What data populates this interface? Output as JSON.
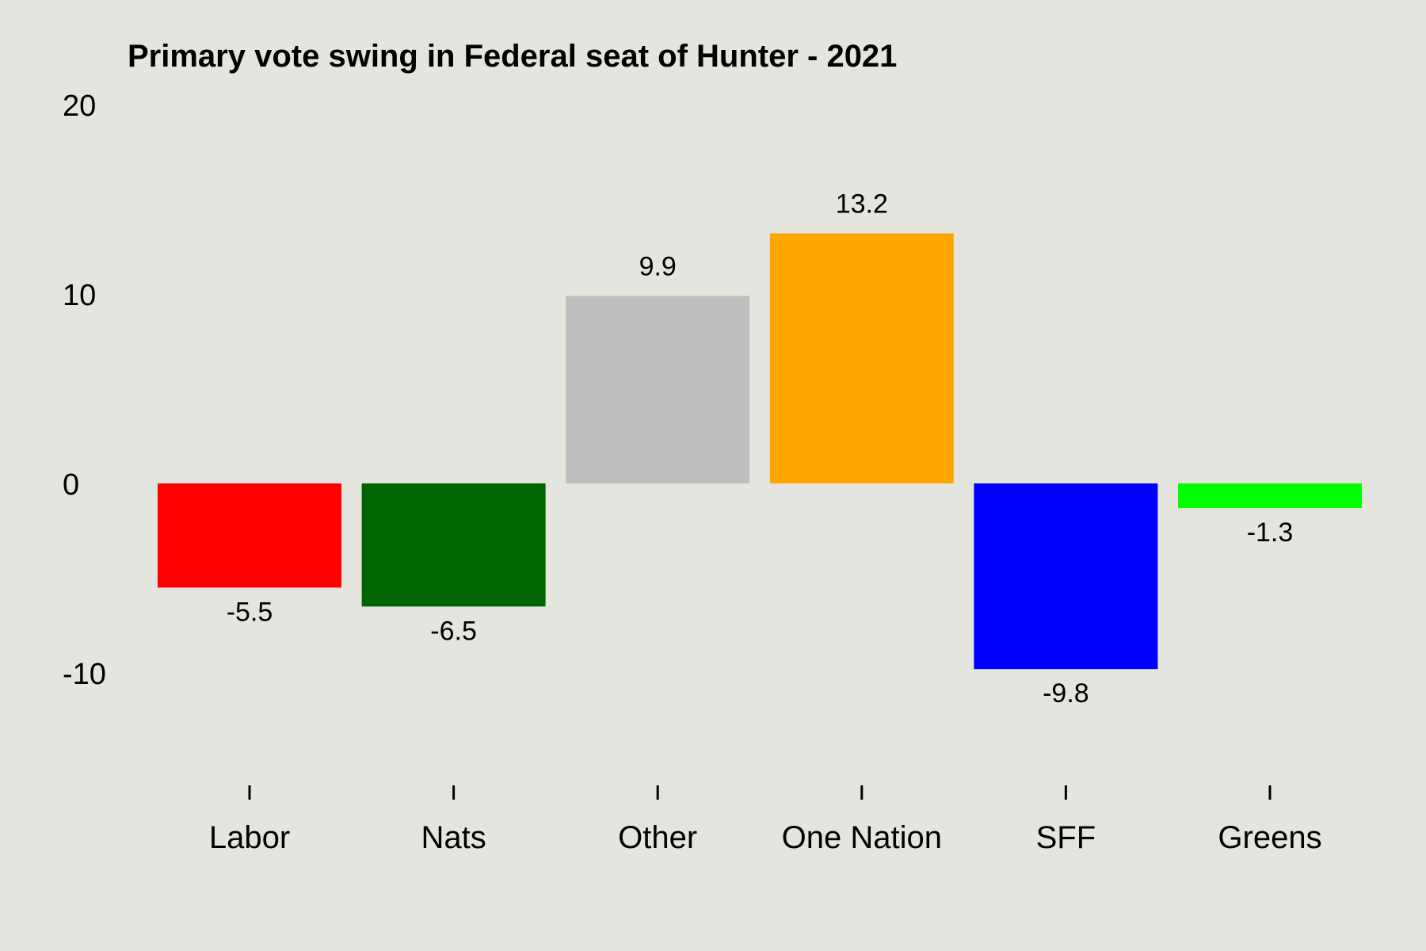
{
  "chart_data": {
    "type": "bar",
    "title": "Primary vote swing in Federal seat of Hunter - 2021",
    "xlabel": "",
    "ylabel": "",
    "categories": [
      "Labor",
      "Nats",
      "Other",
      "One Nation",
      "SFF",
      "Greens"
    ],
    "values": [
      -5.5,
      -6.5,
      9.9,
      13.2,
      -9.8,
      -1.3
    ],
    "data_labels": [
      "-5.5",
      "-6.5",
      "9.9",
      "13.2",
      "-9.8",
      "-1.3"
    ],
    "colors": [
      "#ff0000",
      "#006400",
      "#bebebe",
      "#ffa500",
      "#0000ff",
      "#00ff00"
    ],
    "ylim": [
      -15,
      20
    ],
    "yticks": [
      -10,
      0,
      10,
      20
    ],
    "ytick_labels": [
      "-10",
      "0",
      "10",
      "20"
    ],
    "grid": false,
    "legend": "none",
    "background": "#e5e5df"
  }
}
